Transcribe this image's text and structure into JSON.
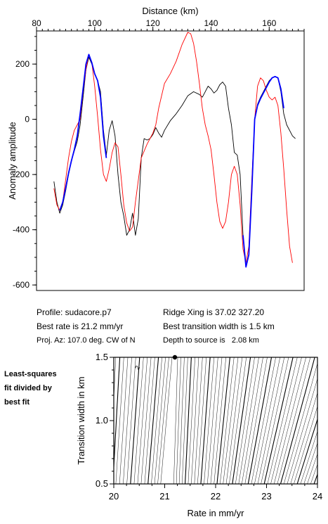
{
  "chart_data": [
    {
      "type": "line",
      "xlabel": "Distance (km)",
      "ylabel": "Anomaly amplitude",
      "xlim": [
        80,
        172
      ],
      "ylim": [
        -620,
        320
      ],
      "xticks": [
        80,
        100,
        120,
        140,
        160
      ],
      "yticks": [
        200,
        0,
        -200,
        -400,
        -600
      ],
      "x_axis_position": "top",
      "series": [
        {
          "color": "#000000",
          "points": [
            [
              86,
              -225
            ],
            [
              87,
              -300
            ],
            [
              88,
              -340
            ],
            [
              89,
              -310
            ],
            [
              90,
              -260
            ],
            [
              91,
              -200
            ],
            [
              92,
              -150
            ],
            [
              93,
              -115
            ],
            [
              94,
              -80
            ],
            [
              95,
              -20
            ],
            [
              96,
              80
            ],
            [
              97,
              180
            ],
            [
              98,
              225
            ],
            [
              99,
              200
            ],
            [
              100,
              165
            ],
            [
              101,
              140
            ],
            [
              102,
              100
            ],
            [
              103,
              -40
            ],
            [
              104,
              -130
            ],
            [
              105,
              -40
            ],
            [
              106,
              -5
            ],
            [
              107,
              -60
            ],
            [
              108,
              -200
            ],
            [
              109,
              -300
            ],
            [
              110,
              -350
            ],
            [
              111,
              -420
            ],
            [
              112,
              -400
            ],
            [
              113,
              -340
            ],
            [
              114,
              -420
            ],
            [
              115,
              -360
            ],
            [
              116,
              -140
            ],
            [
              117,
              -70
            ],
            [
              118,
              -75
            ],
            [
              119,
              -70
            ],
            [
              120,
              -55
            ],
            [
              121,
              -30
            ],
            [
              122,
              -50
            ],
            [
              123,
              -65
            ],
            [
              124,
              -40
            ],
            [
              126,
              -5
            ],
            [
              128,
              20
            ],
            [
              130,
              50
            ],
            [
              132,
              85
            ],
            [
              134,
              100
            ],
            [
              136,
              90
            ],
            [
              137,
              80
            ],
            [
              138,
              100
            ],
            [
              139,
              120
            ],
            [
              140,
              110
            ],
            [
              141,
              95
            ],
            [
              142,
              105
            ],
            [
              143,
              125
            ],
            [
              144,
              135
            ],
            [
              145,
              120
            ],
            [
              146,
              40
            ],
            [
              147,
              -20
            ],
            [
              148,
              -120
            ],
            [
              149,
              -130
            ],
            [
              150,
              -200
            ],
            [
              151,
              -420
            ],
            [
              152,
              -535
            ],
            [
              153,
              -490
            ],
            [
              154,
              -250
            ],
            [
              155,
              0
            ],
            [
              156,
              55
            ],
            [
              157,
              80
            ],
            [
              158,
              100
            ],
            [
              159,
              120
            ],
            [
              160,
              140
            ],
            [
              161,
              150
            ],
            [
              162,
              155
            ],
            [
              163,
              150
            ],
            [
              164,
              100
            ],
            [
              165,
              20
            ],
            [
              166,
              -20
            ],
            [
              168,
              -60
            ],
            [
              169,
              -70
            ]
          ]
        },
        {
          "color": "#ff0000",
          "points": [
            [
              86,
              -250
            ],
            [
              87,
              -310
            ],
            [
              88,
              -330
            ],
            [
              89,
              -300
            ],
            [
              90,
              -220
            ],
            [
              91,
              -140
            ],
            [
              92,
              -80
            ],
            [
              93,
              -40
            ],
            [
              94,
              -20
            ],
            [
              95,
              0
            ],
            [
              96,
              100
            ],
            [
              97,
              180
            ],
            [
              98,
              235
            ],
            [
              99,
              205
            ],
            [
              100,
              120
            ],
            [
              101,
              10
            ],
            [
              102,
              -110
            ],
            [
              103,
              -200
            ],
            [
              104,
              -225
            ],
            [
              105,
              -180
            ],
            [
              106,
              -120
            ],
            [
              107,
              -85
            ],
            [
              108,
              -100
            ],
            [
              109,
              -200
            ],
            [
              110,
              -310
            ],
            [
              111,
              -375
            ],
            [
              112,
              -405
            ],
            [
              113,
              -390
            ],
            [
              114,
              -300
            ],
            [
              116,
              -140
            ],
            [
              118,
              -90
            ],
            [
              120,
              -50
            ],
            [
              121,
              -20
            ],
            [
              122,
              40
            ],
            [
              124,
              130
            ],
            [
              126,
              165
            ],
            [
              128,
              210
            ],
            [
              130,
              270
            ],
            [
              132,
              315
            ],
            [
              133,
              310
            ],
            [
              134,
              275
            ],
            [
              135,
              210
            ],
            [
              136,
              130
            ],
            [
              137,
              40
            ],
            [
              138,
              -20
            ],
            [
              139,
              -60
            ],
            [
              140,
              -110
            ],
            [
              141,
              -200
            ],
            [
              142,
              -300
            ],
            [
              143,
              -370
            ],
            [
              144,
              -395
            ],
            [
              145,
              -370
            ],
            [
              146,
              -300
            ],
            [
              147,
              -200
            ],
            [
              148,
              -170
            ],
            [
              149,
              -200
            ],
            [
              150,
              -310
            ],
            [
              151,
              -470
            ],
            [
              152,
              -520
            ],
            [
              153,
              -460
            ],
            [
              154,
              -220
            ],
            [
              155,
              0
            ],
            [
              156,
              120
            ],
            [
              157,
              150
            ],
            [
              158,
              140
            ],
            [
              159,
              105
            ],
            [
              160,
              80
            ],
            [
              161,
              70
            ],
            [
              162,
              80
            ],
            [
              163,
              50
            ],
            [
              164,
              -50
            ],
            [
              165,
              -180
            ],
            [
              166,
              -330
            ],
            [
              167,
              -460
            ],
            [
              168,
              -520
            ]
          ]
        },
        {
          "color": "#0000ff",
          "segments": [
            [
              [
                88,
                -330
              ],
              [
                89,
                -300
              ],
              [
                90,
                -250
              ],
              [
                91,
                -195
              ],
              [
                92,
                -150
              ],
              [
                93,
                -110
              ],
              [
                94,
                -60
              ],
              [
                95,
                20
              ],
              [
                96,
                110
              ],
              [
                97,
                200
              ],
              [
                98,
                235
              ],
              [
                99,
                205
              ],
              [
                100,
                165
              ],
              [
                101,
                140
              ],
              [
                102,
                80
              ],
              [
                103,
                -60
              ],
              [
                104,
                -140
              ]
            ],
            [
              [
                151,
                -420
              ],
              [
                152,
                -535
              ],
              [
                153,
                -490
              ],
              [
                154,
                -260
              ],
              [
                155,
                0
              ],
              [
                156,
                50
              ],
              [
                157,
                75
              ],
              [
                158,
                95
              ],
              [
                159,
                115
              ],
              [
                160,
                135
              ],
              [
                161,
                150
              ],
              [
                162,
                155
              ],
              [
                163,
                150
              ],
              [
                164,
                110
              ],
              [
                165,
                40
              ]
            ]
          ]
        }
      ]
    },
    {
      "type": "contour",
      "xlabel": "Rate in mm/yr",
      "ylabel": "Transition width in km",
      "xlim": [
        20,
        24
      ],
      "ylim": [
        0.5,
        1.5
      ],
      "xticks": [
        20,
        21,
        22,
        23,
        24
      ],
      "yticks": [
        1.5,
        1.0,
        0.5
      ],
      "minimum": {
        "rate": 21.2,
        "width": 1.5
      },
      "contour_label": "2"
    }
  ],
  "info": {
    "profile": "Profile: sudacore.p7",
    "ridge": "Ridge Xing is 37.02 327.20",
    "best_rate": "Best rate is 21.2 mm/yr",
    "best_width": "Best transition width is 1.5 km",
    "proj": "Proj. Az: 107.0 deg. CW of N",
    "depth": "Depth to source is   2.08 km"
  },
  "side_label": [
    "Least-squares",
    "fit divided by",
    "best fit"
  ]
}
